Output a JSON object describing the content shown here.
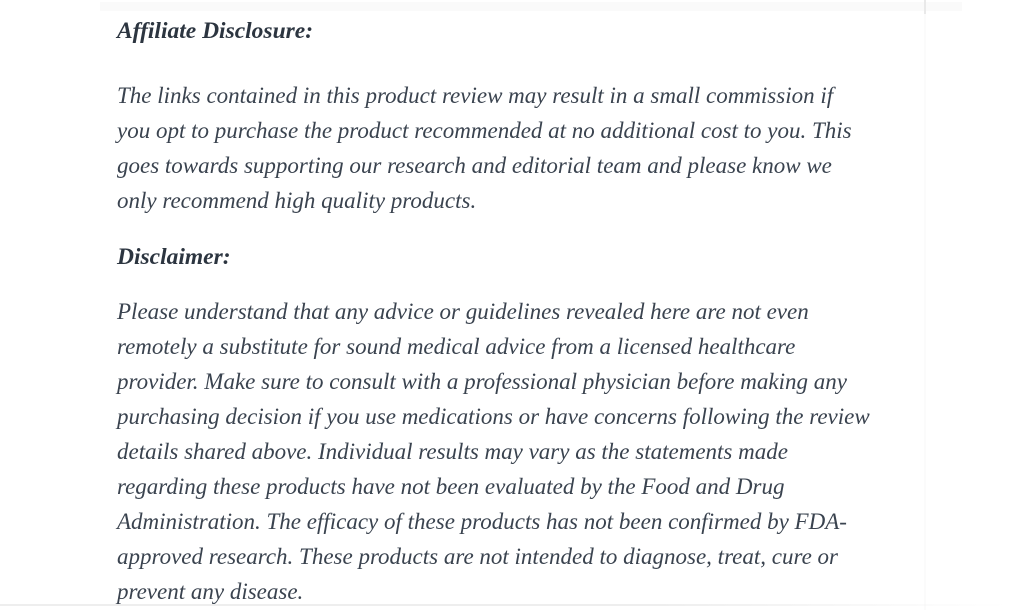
{
  "page": {
    "background_color": "#ffffff",
    "heading_color": "#2c3540",
    "body_text_color": "#3a434f"
  },
  "article": {
    "affiliate": {
      "heading": "Affiliate Disclosure:",
      "body": "The links contained in this product review may result in a small commission if\nyou opt to purchase the product recommended at no additional cost to you. This\ngoes towards supporting our research and editorial team and please know we\nonly recommend high quality products."
    },
    "disclaimer": {
      "heading": "Disclaimer:",
      "body": "Please understand that any advice or guidelines revealed here are not even\nremotely a substitute for sound medical advice from a licensed healthcare\nprovider. Make sure to consult with a professional physician before making any\npurchasing decision if you use medications or have concerns following the review\ndetails shared above. Individual results may vary as the statements made\nregarding these products have not been evaluated by the Food and Drug\nAdministration. The efficacy of these products has not been confirmed by FDA-\napproved research. These products are not intended to diagnose, treat, cure or\nprevent any disease."
    }
  }
}
